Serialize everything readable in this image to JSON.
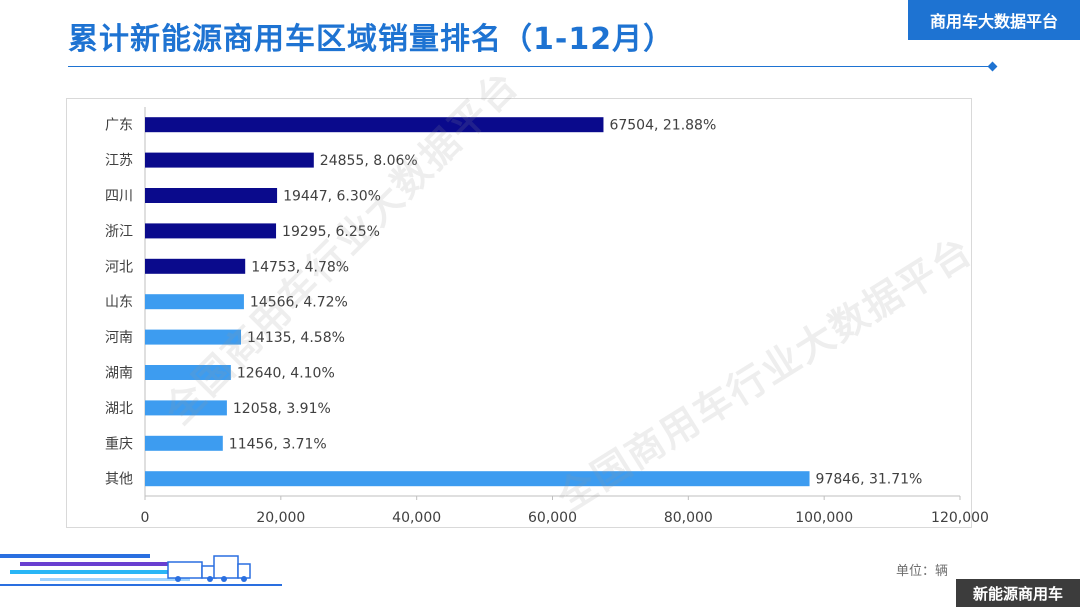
{
  "header": {
    "title": "累计新能源商用车区域销量排名（1-12月）",
    "brand_badge": "商用车大数据平台"
  },
  "footer": {
    "unit": "单位：辆",
    "brand_badge": "新能源商用车"
  },
  "watermark": "全国商用车行业大数据平台",
  "chart_data": {
    "type": "bar",
    "orientation": "horizontal",
    "title": "",
    "categories": [
      "广东",
      "江苏",
      "四川",
      "浙江",
      "河北",
      "山东",
      "河南",
      "湖南",
      "湖北",
      "重庆",
      "其他"
    ],
    "values": [
      67504,
      24855,
      19447,
      19295,
      14753,
      14566,
      14135,
      12640,
      12058,
      11456,
      97846
    ],
    "data_labels": [
      "67504, 21.88%",
      "24855, 8.06%",
      "19447, 6.30%",
      "19295, 6.25%",
      "14753, 4.78%",
      "14566, 4.72%",
      "14135, 4.58%",
      "12640, 4.10%",
      "12058, 3.91%",
      "11456, 3.71%",
      "97846, 31.71%"
    ],
    "bar_colors": [
      "#0a0a8c",
      "#0a0a8c",
      "#0a0a8c",
      "#0a0a8c",
      "#0a0a8c",
      "#3d9cf0",
      "#3d9cf0",
      "#3d9cf0",
      "#3d9cf0",
      "#3d9cf0",
      "#3d9cf0"
    ],
    "xlim": [
      0,
      120000
    ],
    "x_ticks": [
      "0",
      "20,000",
      "40,000",
      "60,000",
      "80,000",
      "100,000",
      "120,000"
    ],
    "grid": false,
    "legend": "none"
  }
}
